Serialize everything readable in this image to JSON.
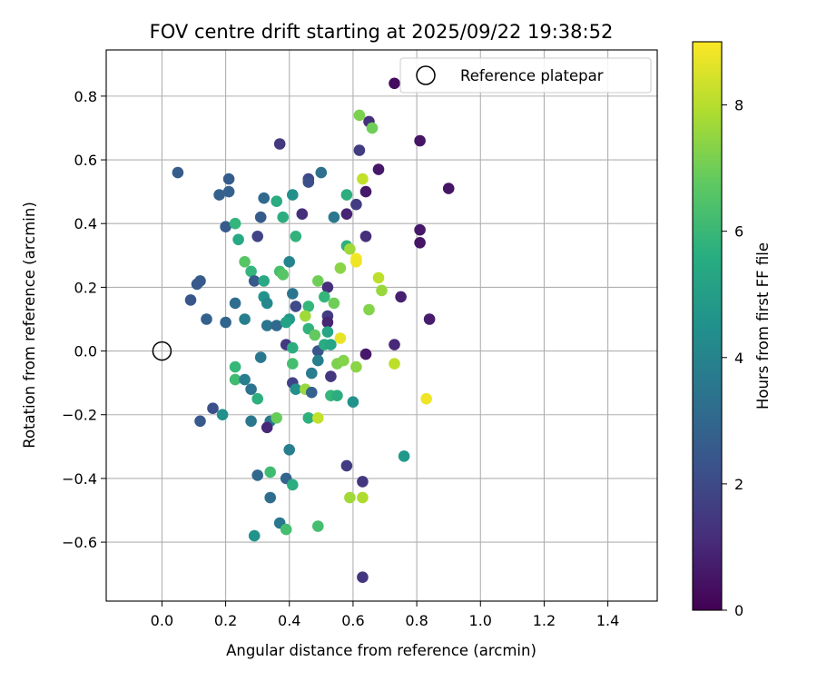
{
  "chart_data": {
    "type": "scatter",
    "title": "FOV centre drift starting at 2025/09/22 19:38:52",
    "xlabel": "Angular distance from reference (arcmin)",
    "ylabel": "Rotation from reference (arcmin)",
    "xlim": [
      -0.175,
      1.555
    ],
    "ylim": [
      -0.785,
      0.945
    ],
    "xticks": [
      0.0,
      0.2,
      0.4,
      0.6,
      0.8,
      1.0,
      1.2,
      1.4
    ],
    "xtick_labels": [
      "0.0",
      "0.2",
      "0.4",
      "0.6",
      "0.8",
      "1.0",
      "1.2",
      "1.4"
    ],
    "yticks": [
      -0.6,
      -0.4,
      -0.2,
      0.0,
      0.2,
      0.4,
      0.6,
      0.8
    ],
    "ytick_labels": [
      "−0.6",
      "−0.4",
      "−0.2",
      "0.0",
      "0.2",
      "0.4",
      "0.6",
      "0.8"
    ],
    "grid": true,
    "legend": {
      "entries": [
        "Reference platepar"
      ],
      "position": "top-right"
    },
    "reference_point": {
      "x": 0.0,
      "y": 0.0,
      "label": "Reference platepar"
    },
    "colorbar": {
      "label": "Hours from first FF file",
      "colormap": "viridis",
      "range": [
        0,
        9
      ],
      "ticks": [
        0,
        2,
        4,
        6,
        8
      ],
      "tick_labels": [
        "0",
        "2",
        "4",
        "6",
        "8"
      ]
    },
    "points": [
      [
        0.73,
        0.84,
        0.3
      ],
      [
        0.62,
        0.74,
        7.2
      ],
      [
        0.65,
        0.72,
        1.2
      ],
      [
        0.66,
        0.7,
        7.0
      ],
      [
        0.37,
        0.65,
        1.5
      ],
      [
        0.62,
        0.63,
        1.6
      ],
      [
        0.81,
        0.66,
        0.5
      ],
      [
        0.68,
        0.57,
        0.6
      ],
      [
        0.05,
        0.56,
        2.6
      ],
      [
        0.5,
        0.56,
        3.3
      ],
      [
        0.63,
        0.54,
        8.2
      ],
      [
        0.46,
        0.54,
        1.9
      ],
      [
        0.46,
        0.53,
        2.2
      ],
      [
        0.9,
        0.51,
        0.5
      ],
      [
        0.21,
        0.54,
        2.6
      ],
      [
        0.18,
        0.49,
        2.8
      ],
      [
        0.21,
        0.5,
        2.8
      ],
      [
        0.41,
        0.49,
        4.5
      ],
      [
        0.64,
        0.5,
        0.6
      ],
      [
        0.58,
        0.49,
        5.6
      ],
      [
        0.32,
        0.48,
        3.0
      ],
      [
        0.36,
        0.47,
        5.5
      ],
      [
        0.61,
        0.46,
        1.6
      ],
      [
        0.44,
        0.43,
        1.2
      ],
      [
        0.58,
        0.43,
        0.9
      ],
      [
        0.31,
        0.42,
        2.6
      ],
      [
        0.38,
        0.42,
        5.6
      ],
      [
        0.54,
        0.42,
        3.6
      ],
      [
        0.2,
        0.39,
        2.6
      ],
      [
        0.23,
        0.4,
        5.9
      ],
      [
        0.81,
        0.38,
        0.6
      ],
      [
        0.42,
        0.36,
        5.8
      ],
      [
        0.24,
        0.35,
        5.4
      ],
      [
        0.3,
        0.36,
        1.8
      ],
      [
        0.64,
        0.36,
        1.2
      ],
      [
        0.81,
        0.34,
        0.5
      ],
      [
        0.58,
        0.33,
        5.7
      ],
      [
        0.59,
        0.32,
        7.7
      ],
      [
        0.61,
        0.29,
        8.9
      ],
      [
        0.61,
        0.28,
        8.8
      ],
      [
        0.26,
        0.28,
        6.6
      ],
      [
        0.4,
        0.28,
        4.1
      ],
      [
        0.28,
        0.25,
        5.9
      ],
      [
        0.37,
        0.25,
        6.3
      ],
      [
        0.56,
        0.26,
        7.4
      ],
      [
        0.38,
        0.24,
        6.6
      ],
      [
        0.68,
        0.23,
        8.1
      ],
      [
        0.12,
        0.22,
        2.6
      ],
      [
        0.29,
        0.22,
        2.5
      ],
      [
        0.32,
        0.22,
        5.4
      ],
      [
        0.49,
        0.22,
        7.0
      ],
      [
        0.11,
        0.21,
        2.5
      ],
      [
        0.52,
        0.2,
        1.2
      ],
      [
        0.69,
        0.19,
        7.6
      ],
      [
        0.41,
        0.18,
        3.5
      ],
      [
        0.75,
        0.17,
        0.8
      ],
      [
        0.32,
        0.17,
        4.6
      ],
      [
        0.51,
        0.17,
        5.9
      ],
      [
        0.09,
        0.16,
        2.4
      ],
      [
        0.23,
        0.15,
        3.2
      ],
      [
        0.33,
        0.15,
        4.2
      ],
      [
        0.42,
        0.14,
        2.0
      ],
      [
        0.46,
        0.14,
        6.0
      ],
      [
        0.54,
        0.15,
        7.0
      ],
      [
        0.65,
        0.13,
        7.3
      ],
      [
        0.45,
        0.11,
        7.7
      ],
      [
        0.52,
        0.11,
        1.6
      ],
      [
        0.14,
        0.1,
        2.8
      ],
      [
        0.2,
        0.09,
        2.9
      ],
      [
        0.26,
        0.1,
        3.9
      ],
      [
        0.4,
        0.1,
        4.8
      ],
      [
        0.52,
        0.09,
        0.9
      ],
      [
        0.84,
        0.1,
        0.7
      ],
      [
        0.33,
        0.08,
        3.5
      ],
      [
        0.36,
        0.08,
        3.0
      ],
      [
        0.39,
        0.09,
        5.2
      ],
      [
        0.46,
        0.07,
        5.8
      ],
      [
        0.52,
        0.06,
        5.3
      ],
      [
        0.48,
        0.05,
        6.8
      ],
      [
        0.56,
        0.04,
        8.7
      ],
      [
        0.39,
        0.02,
        1.5
      ],
      [
        0.41,
        0.01,
        5.6
      ],
      [
        0.49,
        0.0,
        2.4
      ],
      [
        0.51,
        0.02,
        5.5
      ],
      [
        0.53,
        0.02,
        5.3
      ],
      [
        0.64,
        -0.01,
        0.6
      ],
      [
        0.73,
        0.02,
        1.0
      ],
      [
        0.31,
        -0.02,
        3.6
      ],
      [
        0.49,
        -0.03,
        3.9
      ],
      [
        0.41,
        -0.04,
        6.3
      ],
      [
        0.55,
        -0.04,
        7.2
      ],
      [
        0.57,
        -0.03,
        7.3
      ],
      [
        0.61,
        -0.05,
        7.4
      ],
      [
        0.73,
        -0.04,
        8.1
      ],
      [
        0.23,
        -0.05,
        6.0
      ],
      [
        0.47,
        -0.07,
        3.8
      ],
      [
        0.53,
        -0.08,
        1.4
      ],
      [
        0.23,
        -0.09,
        6.2
      ],
      [
        0.26,
        -0.09,
        3.9
      ],
      [
        0.28,
        -0.12,
        3.4
      ],
      [
        0.41,
        -0.1,
        1.8
      ],
      [
        0.42,
        -0.12,
        4.5
      ],
      [
        0.45,
        -0.12,
        7.6
      ],
      [
        0.47,
        -0.13,
        2.8
      ],
      [
        0.53,
        -0.14,
        6.0
      ],
      [
        0.55,
        -0.14,
        5.6
      ],
      [
        0.3,
        -0.15,
        5.7
      ],
      [
        0.6,
        -0.16,
        4.6
      ],
      [
        0.83,
        -0.15,
        8.8
      ],
      [
        0.16,
        -0.18,
        2.2
      ],
      [
        0.12,
        -0.22,
        2.5
      ],
      [
        0.19,
        -0.2,
        4.5
      ],
      [
        0.28,
        -0.22,
        3.6
      ],
      [
        0.34,
        -0.22,
        3.6
      ],
      [
        0.36,
        -0.21,
        6.9
      ],
      [
        0.46,
        -0.21,
        5.7
      ],
      [
        0.49,
        -0.21,
        8.2
      ],
      [
        0.33,
        -0.24,
        1.0
      ],
      [
        0.4,
        -0.31,
        3.9
      ],
      [
        0.76,
        -0.33,
        4.8
      ],
      [
        0.58,
        -0.36,
        1.6
      ],
      [
        0.34,
        -0.38,
        6.2
      ],
      [
        0.3,
        -0.39,
        3.0
      ],
      [
        0.39,
        -0.4,
        2.9
      ],
      [
        0.63,
        -0.41,
        1.4
      ],
      [
        0.41,
        -0.42,
        5.6
      ],
      [
        0.34,
        -0.46,
        3.2
      ],
      [
        0.59,
        -0.46,
        7.7
      ],
      [
        0.63,
        -0.46,
        7.9
      ],
      [
        0.37,
        -0.54,
        3.6
      ],
      [
        0.39,
        -0.56,
        6.3
      ],
      [
        0.49,
        -0.55,
        6.3
      ],
      [
        0.29,
        -0.58,
        4.6
      ],
      [
        0.63,
        -0.71,
        1.4
      ]
    ]
  }
}
